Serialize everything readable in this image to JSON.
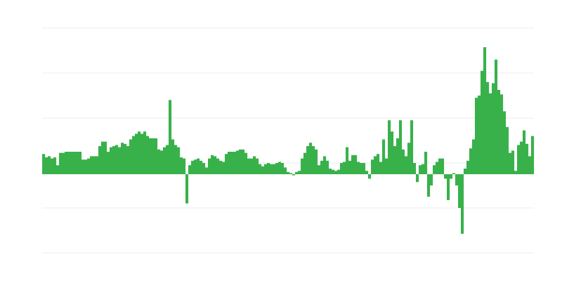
{
  "chart_data": {
    "type": "bar",
    "title": "",
    "xlabel": "",
    "ylabel": "",
    "ylim": [
      -35,
      65
    ],
    "gridlines": [
      65,
      45,
      25,
      5,
      -15,
      -35
    ],
    "grid": true,
    "legend": "none",
    "colors": {
      "bar": "#39b14b",
      "grid": "#ececec"
    },
    "values": [
      9,
      7.5,
      8,
      7,
      7.5,
      4,
      9.5,
      9.5,
      10,
      10,
      10,
      10,
      10,
      10,
      6.5,
      6.5,
      7,
      8,
      8,
      8,
      12.5,
      14.5,
      14.5,
      10,
      12,
      12.5,
      13,
      12,
      14,
      13.5,
      12.5,
      15.5,
      17,
      18,
      19,
      18,
      19,
      17,
      16,
      16,
      16,
      11,
      10.5,
      12,
      13,
      33,
      15.5,
      13,
      12,
      7.5,
      7,
      -13,
      4,
      6,
      6.5,
      7,
      6,
      5,
      3,
      7,
      8.5,
      8,
      7,
      6,
      5.5,
      9,
      10,
      10,
      10,
      10.5,
      11,
      11,
      9.5,
      7,
      7,
      8,
      7,
      4.5,
      3.5,
      4.5,
      5,
      4.5,
      4.5,
      5,
      5.5,
      5,
      3,
      1,
      0.5,
      -0.5,
      1,
      1.5,
      7,
      9.5,
      12.5,
      14,
      12.5,
      11,
      4,
      6,
      8,
      6,
      2.5,
      2,
      1.5,
      2,
      5,
      5.5,
      12,
      6,
      8.5,
      8.5,
      5.5,
      5,
      5,
      1.5,
      -2,
      6.5,
      8,
      9,
      5.5,
      15.5,
      7,
      24,
      19,
      12.5,
      16,
      24,
      11,
      8,
      14,
      24,
      5,
      -3.5,
      4,
      4.5,
      10,
      -10,
      -5,
      4,
      5.5,
      7,
      7,
      -2,
      -11.5,
      -2,
      0.5,
      -5,
      -15,
      -26.5,
      2.5,
      6,
      11.5,
      15.5,
      34,
      35,
      46,
      56.5,
      41,
      36,
      40.5,
      51,
      37.5,
      35.5,
      28,
      21,
      9.5,
      10.5,
      1.5,
      13,
      14.5,
      19.5,
      13.5,
      8,
      17
    ]
  }
}
